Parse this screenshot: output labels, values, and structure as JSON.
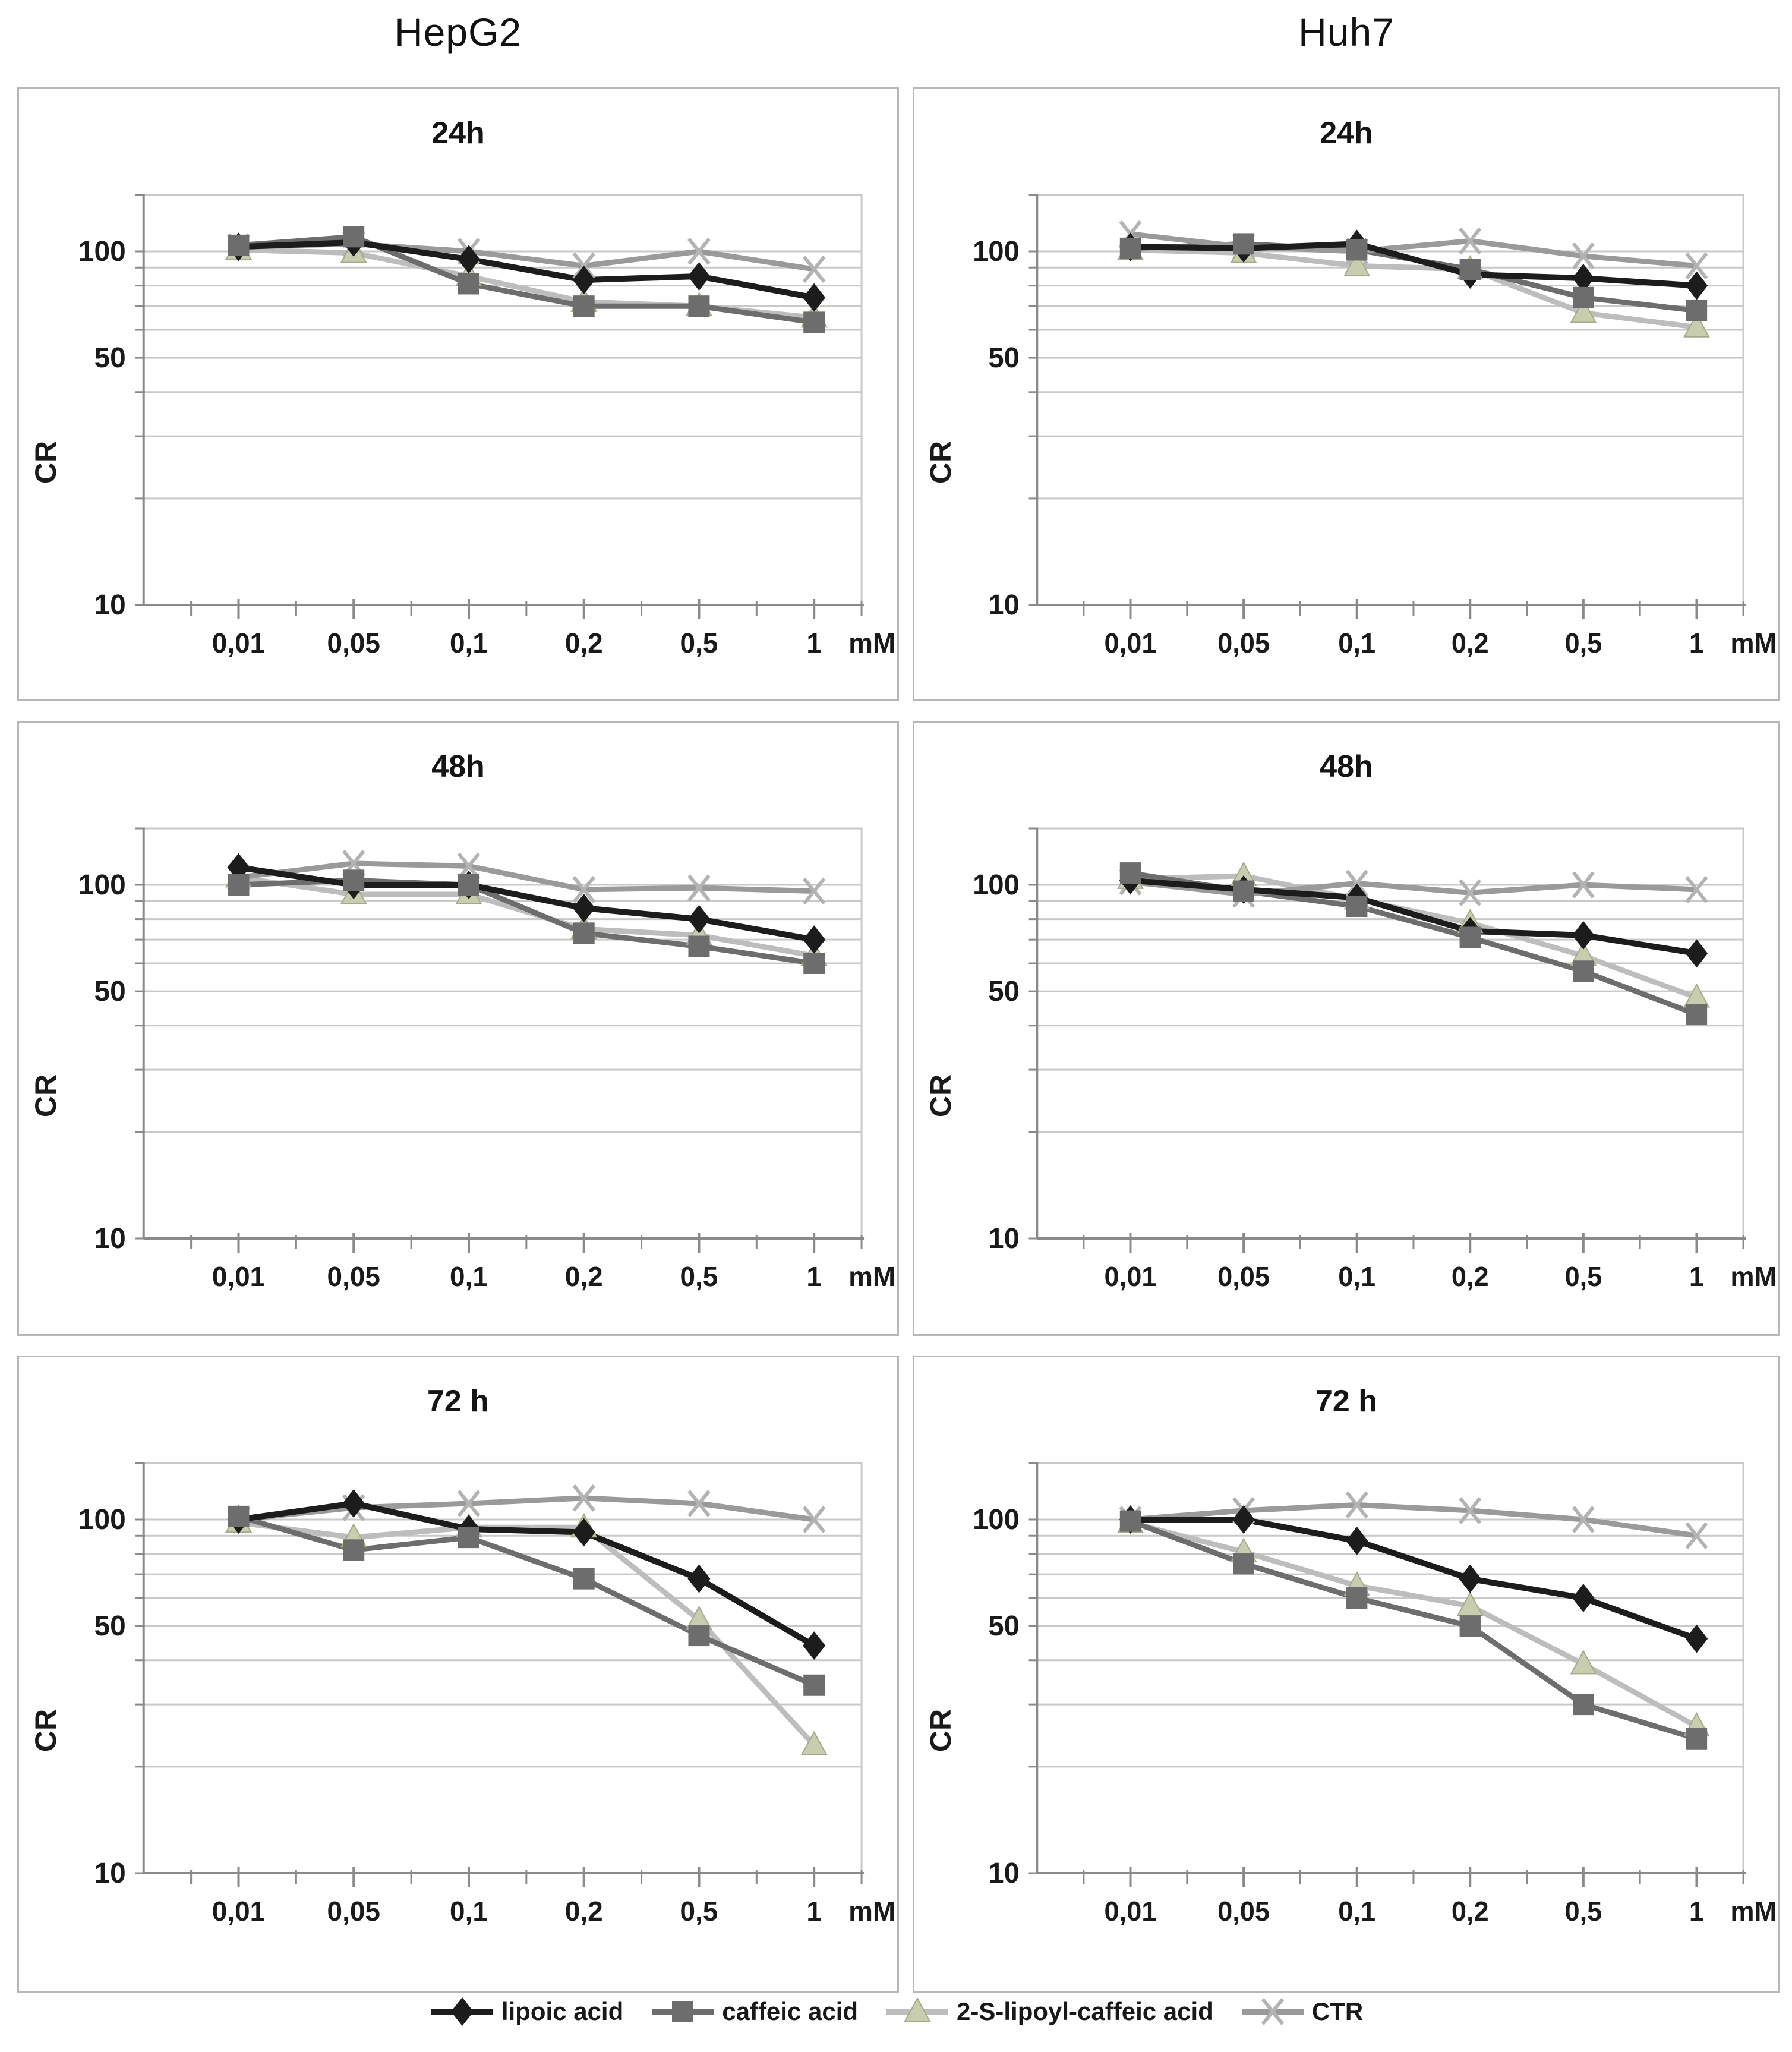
{
  "page": {
    "col_titles": [
      "HepG2",
      "Huh7"
    ],
    "legend": [
      {
        "label": "lipoic acid",
        "marker": "diamond",
        "line_color": "#1c1c1c",
        "marker_color": "#1c1c1c",
        "marker_stroke": "#1c1c1c"
      },
      {
        "label": "caffeic acid",
        "marker": "square",
        "line_color": "#6d6d6d",
        "marker_color": "#6d6d6d",
        "marker_stroke": "#5f5f5f"
      },
      {
        "label": "2-S-lipoyl-caffeic acid",
        "marker": "triangle",
        "line_color": "#bdbdbd",
        "marker_color": "#c9cdb0",
        "marker_stroke": "#a4aa87"
      },
      {
        "label": "CTR",
        "marker": "x",
        "line_color": "#9a9a9a",
        "marker_color": "#b3b3b3",
        "marker_stroke": "#b3b3b3"
      }
    ],
    "colors": {
      "axis": "#8a8a8a",
      "grid": "#c9c9c9",
      "panel_border": "#b7b7b7",
      "text": "#1a1a1a"
    }
  },
  "chart_data": [
    {
      "type": "line",
      "cell_line": "HepG2",
      "title": "24h",
      "ylabel": "CR",
      "x_unit": "mM",
      "y_scale": "log",
      "ylim": [
        10,
        145
      ],
      "grid": true,
      "legend_position": "bottom-shared",
      "x_values_mM": [
        0.01,
        0.05,
        0.1,
        0.2,
        0.5,
        1
      ],
      "x_tick_labels": [
        "0,01",
        "0,05",
        "0,1",
        "0,2",
        "0,5",
        "1"
      ],
      "y_ticks": [
        {
          "v": 100,
          "label": "100"
        },
        {
          "v": 50,
          "label": "50"
        },
        {
          "v": 10,
          "label": "10"
        }
      ],
      "gridline_values": [
        20,
        30,
        40,
        50,
        60,
        70,
        80,
        90,
        100
      ],
      "series": [
        {
          "name": "lipoic acid",
          "values": [
            103,
            106,
            95,
            83,
            85,
            74
          ]
        },
        {
          "name": "caffeic acid",
          "values": [
            104,
            110,
            81,
            70,
            70,
            63
          ]
        },
        {
          "name": "2-S-lipoyl-caffeic acid",
          "values": [
            101,
            99,
            85,
            72,
            70,
            65
          ]
        },
        {
          "name": "CTR",
          "values": [
            103,
            105,
            100,
            91,
            100,
            89
          ]
        }
      ]
    },
    {
      "type": "line",
      "cell_line": "Huh7",
      "title": "24h",
      "ylabel": "CR",
      "x_unit": "mM",
      "y_scale": "log",
      "ylim": [
        10,
        145
      ],
      "grid": true,
      "legend_position": "bottom-shared",
      "x_values_mM": [
        0.01,
        0.05,
        0.1,
        0.2,
        0.5,
        1
      ],
      "x_tick_labels": [
        "0,01",
        "0,05",
        "0,1",
        "0,2",
        "0,5",
        "1"
      ],
      "y_ticks": [
        {
          "v": 100,
          "label": "100"
        },
        {
          "v": 50,
          "label": "50"
        },
        {
          "v": 10,
          "label": "10"
        }
      ],
      "gridline_values": [
        20,
        30,
        40,
        50,
        60,
        70,
        80,
        90,
        100
      ],
      "series": [
        {
          "name": "lipoic acid",
          "values": [
            103,
            102,
            105,
            86,
            84,
            80
          ]
        },
        {
          "name": "caffeic acid",
          "values": [
            102,
            105,
            101,
            89,
            74,
            68
          ]
        },
        {
          "name": "2-S-lipoyl-caffeic acid",
          "values": [
            101,
            99,
            91,
            89,
            67,
            61
          ]
        },
        {
          "name": "CTR",
          "values": [
            112,
            103,
            100,
            107,
            97,
            91
          ]
        }
      ]
    },
    {
      "type": "line",
      "cell_line": "HepG2",
      "title": "48h",
      "ylabel": "CR",
      "x_unit": "mM",
      "y_scale": "log",
      "ylim": [
        10,
        145
      ],
      "grid": true,
      "legend_position": "bottom-shared",
      "x_values_mM": [
        0.01,
        0.05,
        0.1,
        0.2,
        0.5,
        1
      ],
      "x_tick_labels": [
        "0,01",
        "0,05",
        "0,1",
        "0,2",
        "0,5",
        "1"
      ],
      "y_ticks": [
        {
          "v": 100,
          "label": "100"
        },
        {
          "v": 50,
          "label": "50"
        },
        {
          "v": 10,
          "label": "10"
        }
      ],
      "gridline_values": [
        20,
        30,
        40,
        50,
        60,
        70,
        80,
        90,
        100
      ],
      "series": [
        {
          "name": "lipoic acid",
          "values": [
            112,
            100,
            100,
            86,
            80,
            70
          ]
        },
        {
          "name": "caffeic acid",
          "values": [
            100,
            103,
            100,
            73,
            67,
            60
          ]
        },
        {
          "name": "2-S-lipoyl-caffeic acid",
          "values": [
            105,
            94,
            94,
            75,
            72,
            63
          ]
        },
        {
          "name": "CTR",
          "values": [
            105,
            115,
            113,
            97,
            98,
            96
          ]
        }
      ]
    },
    {
      "type": "line",
      "cell_line": "Huh7",
      "title": "48h",
      "ylabel": "CR",
      "x_unit": "mM",
      "y_scale": "log",
      "ylim": [
        10,
        145
      ],
      "grid": true,
      "legend_position": "bottom-shared",
      "x_values_mM": [
        0.01,
        0.05,
        0.1,
        0.2,
        0.5,
        1
      ],
      "x_tick_labels": [
        "0,01",
        "0,05",
        "0,1",
        "0,2",
        "0,5",
        "1"
      ],
      "y_ticks": [
        {
          "v": 100,
          "label": "100"
        },
        {
          "v": 50,
          "label": "50"
        },
        {
          "v": 10,
          "label": "10"
        }
      ],
      "gridline_values": [
        20,
        30,
        40,
        50,
        60,
        70,
        80,
        90,
        100
      ],
      "series": [
        {
          "name": "lipoic acid",
          "values": [
            103,
            97,
            92,
            74,
            72,
            64
          ]
        },
        {
          "name": "caffeic acid",
          "values": [
            108,
            96,
            87,
            71,
            57,
            43
          ]
        },
        {
          "name": "2-S-lipoyl-caffeic acid",
          "values": [
            104,
            106,
            91,
            78,
            63,
            48
          ]
        },
        {
          "name": "CTR",
          "values": [
            102,
            94,
            101,
            95,
            100,
            97
          ]
        }
      ]
    },
    {
      "type": "line",
      "cell_line": "HepG2",
      "title": "72 h",
      "ylabel": "CR",
      "x_unit": "mM",
      "y_scale": "log",
      "ylim": [
        10,
        145
      ],
      "grid": true,
      "legend_position": "bottom-shared",
      "x_values_mM": [
        0.01,
        0.05,
        0.1,
        0.2,
        0.5,
        1
      ],
      "x_tick_labels": [
        "0,01",
        "0,05",
        "0,1",
        "0,2",
        "0,5",
        "1"
      ],
      "y_ticks": [
        {
          "v": 100,
          "label": "100"
        },
        {
          "v": 50,
          "label": "50"
        },
        {
          "v": 10,
          "label": "10"
        }
      ],
      "gridline_values": [
        20,
        30,
        40,
        50,
        60,
        70,
        80,
        90,
        100
      ],
      "series": [
        {
          "name": "lipoic acid",
          "values": [
            100,
            111,
            94,
            92,
            68,
            44
          ]
        },
        {
          "name": "caffeic acid",
          "values": [
            102,
            82,
            89,
            68,
            47,
            34
          ]
        },
        {
          "name": "2-S-lipoyl-caffeic acid",
          "values": [
            98,
            89,
            95,
            95,
            52,
            23
          ]
        },
        {
          "name": "CTR",
          "values": [
            100,
            108,
            111,
            115,
            111,
            100
          ]
        }
      ]
    },
    {
      "type": "line",
      "cell_line": "Huh7",
      "title": "72 h",
      "ylabel": "CR",
      "x_unit": "mM",
      "y_scale": "log",
      "ylim": [
        10,
        145
      ],
      "grid": true,
      "legend_position": "bottom-shared",
      "x_values_mM": [
        0.01,
        0.05,
        0.1,
        0.2,
        0.5,
        1
      ],
      "x_tick_labels": [
        "0,01",
        "0,05",
        "0,1",
        "0,2",
        "0,5",
        "1"
      ],
      "y_ticks": [
        {
          "v": 100,
          "label": "100"
        },
        {
          "v": 50,
          "label": "50"
        },
        {
          "v": 10,
          "label": "10"
        }
      ],
      "gridline_values": [
        20,
        30,
        40,
        50,
        60,
        70,
        80,
        90,
        100
      ],
      "series": [
        {
          "name": "lipoic acid",
          "values": [
            100,
            100,
            87,
            68,
            60,
            46
          ]
        },
        {
          "name": "caffeic acid",
          "values": [
            99,
            75,
            60,
            50,
            30,
            24
          ]
        },
        {
          "name": "2-S-lipoyl-caffeic acid",
          "values": [
            98,
            81,
            65,
            57,
            39,
            26
          ]
        },
        {
          "name": "CTR",
          "values": [
            100,
            106,
            110,
            106,
            100,
            90
          ]
        }
      ]
    }
  ]
}
